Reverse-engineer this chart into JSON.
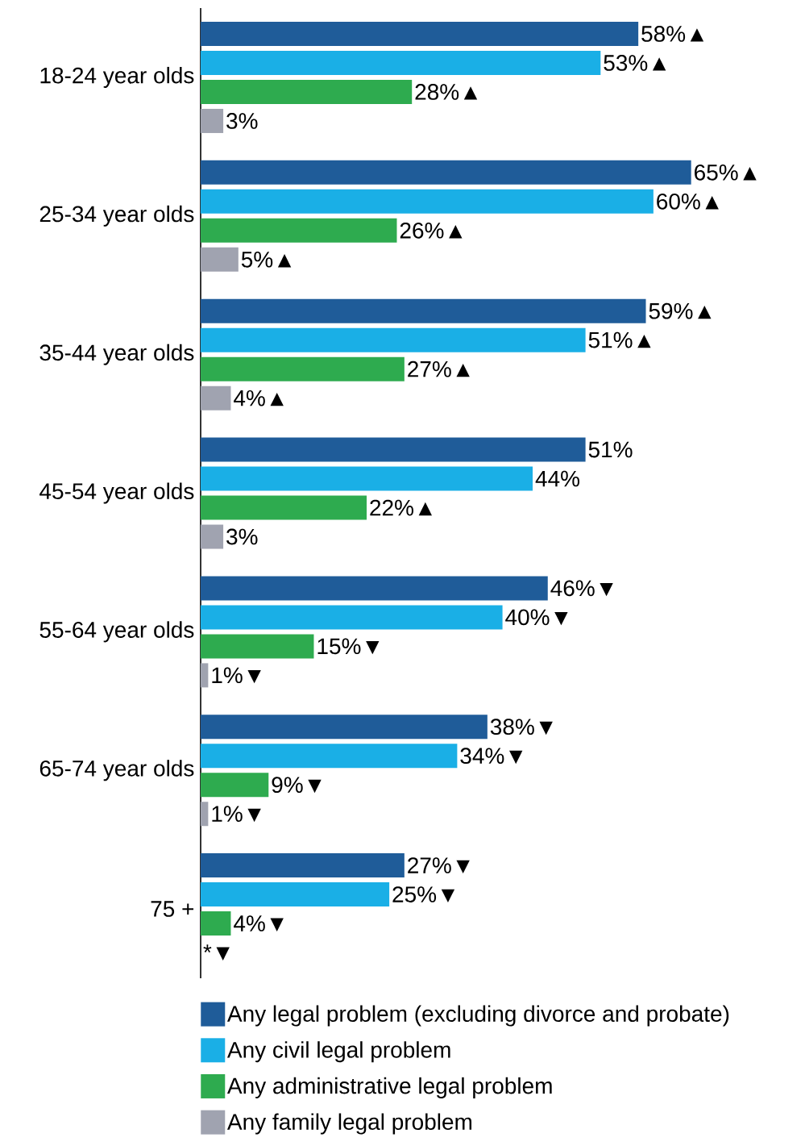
{
  "chart_data": {
    "type": "bar",
    "orientation": "horizontal",
    "legend": "bottom",
    "categories": [
      "18-24 year olds",
      "25-34 year olds",
      "35-44 year olds",
      "45-54 year olds",
      "55-64 year olds",
      "65-74 year olds",
      "75 +"
    ],
    "series": [
      {
        "name": "Any legal problem (excluding divorce and probate)",
        "color": "#1f5c99",
        "values": [
          58,
          65,
          59,
          51,
          46,
          38,
          27
        ],
        "value_labels": [
          "58%▲",
          "65%▲",
          "59%▲",
          "51%",
          "46%▼",
          "38%▼",
          "27%▼"
        ]
      },
      {
        "name": "Any civil legal problem",
        "color": "#1aafe6",
        "values": [
          53,
          60,
          51,
          44,
          40,
          34,
          25
        ],
        "value_labels": [
          "53%▲",
          "60%▲",
          "51%▲",
          "44%",
          "40%▼",
          "34%▼",
          "25%▼"
        ]
      },
      {
        "name": "Any administrative legal problem",
        "color": "#2eab4f",
        "values": [
          28,
          26,
          27,
          22,
          15,
          9,
          4
        ],
        "value_labels": [
          "28%▲",
          "26%▲",
          "27%▲",
          "22%▲",
          "15%▼",
          "9%▼",
          "4%▼"
        ]
      },
      {
        "name": "Any family legal problem",
        "color": "#a0a3b0",
        "values": [
          3,
          5,
          4,
          3,
          1,
          1,
          null
        ],
        "value_labels": [
          "3%",
          "5%▲",
          "4%▲",
          "3%",
          "1%▼",
          "1%▼",
          "*▼"
        ]
      }
    ]
  }
}
